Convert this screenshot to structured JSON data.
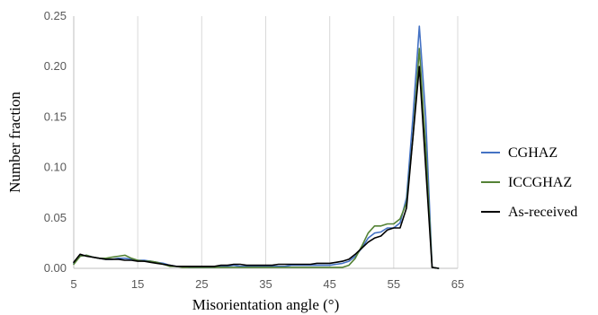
{
  "chart_data": {
    "type": "line",
    "title": "",
    "xlabel": "Misorientation angle (°)",
    "ylabel": "Number fraction",
    "xlim": [
      5,
      65
    ],
    "ylim": [
      0,
      0.25
    ],
    "x_ticks": [
      "5",
      "15",
      "25",
      "35",
      "45",
      "55",
      "65"
    ],
    "y_ticks": [
      "0.00",
      "0.05",
      "0.10",
      "0.15",
      "0.20",
      "0.25"
    ],
    "grid": "vertical",
    "legend": "right",
    "series": [
      {
        "name": "CGHAZ",
        "color": "#4472c4",
        "x": [
          5,
          6,
          7,
          8,
          9,
          10,
          11,
          12,
          13,
          14,
          15,
          16,
          17,
          18,
          19,
          20,
          21,
          22,
          23,
          24,
          25,
          26,
          27,
          28,
          29,
          30,
          31,
          32,
          33,
          34,
          35,
          36,
          37,
          38,
          39,
          40,
          41,
          42,
          43,
          44,
          45,
          46,
          47,
          48,
          49,
          50,
          51,
          52,
          53,
          54,
          55,
          56,
          57,
          58,
          59,
          60,
          61,
          62
        ],
        "y": [
          0.005,
          0.012,
          0.013,
          0.011,
          0.01,
          0.009,
          0.009,
          0.01,
          0.01,
          0.009,
          0.008,
          0.008,
          0.007,
          0.006,
          0.005,
          0.003,
          0.002,
          0.002,
          0.001,
          0.001,
          0.001,
          0.001,
          0.001,
          0.002,
          0.002,
          0.003,
          0.002,
          0.002,
          0.002,
          0.002,
          0.002,
          0.002,
          0.002,
          0.002,
          0.003,
          0.003,
          0.003,
          0.003,
          0.003,
          0.003,
          0.003,
          0.004,
          0.005,
          0.007,
          0.012,
          0.02,
          0.03,
          0.035,
          0.036,
          0.04,
          0.04,
          0.045,
          0.07,
          0.15,
          0.24,
          0.15,
          0.001,
          0.0
        ]
      },
      {
        "name": "ICCGHAZ",
        "color": "#548235",
        "x": [
          5,
          6,
          7,
          8,
          9,
          10,
          11,
          12,
          13,
          14,
          15,
          16,
          17,
          18,
          19,
          20,
          21,
          22,
          23,
          24,
          25,
          26,
          27,
          28,
          29,
          30,
          31,
          32,
          33,
          34,
          35,
          36,
          37,
          38,
          39,
          40,
          41,
          42,
          43,
          44,
          45,
          46,
          47,
          48,
          49,
          50,
          51,
          52,
          53,
          54,
          55,
          56,
          57,
          58,
          59,
          60,
          61,
          62
        ],
        "y": [
          0.004,
          0.012,
          0.013,
          0.011,
          0.01,
          0.01,
          0.011,
          0.012,
          0.013,
          0.01,
          0.008,
          0.007,
          0.007,
          0.006,
          0.004,
          0.002,
          0.002,
          0.001,
          0.001,
          0.001,
          0.001,
          0.001,
          0.001,
          0.001,
          0.001,
          0.001,
          0.001,
          0.001,
          0.001,
          0.001,
          0.001,
          0.001,
          0.001,
          0.001,
          0.001,
          0.001,
          0.001,
          0.001,
          0.001,
          0.001,
          0.001,
          0.001,
          0.001,
          0.003,
          0.01,
          0.022,
          0.035,
          0.042,
          0.042,
          0.044,
          0.044,
          0.049,
          0.065,
          0.13,
          0.218,
          0.12,
          0.001,
          0.0
        ]
      },
      {
        "name": "As-received",
        "color": "#000000",
        "x": [
          5,
          6,
          7,
          8,
          9,
          10,
          11,
          12,
          13,
          14,
          15,
          16,
          17,
          18,
          19,
          20,
          21,
          22,
          23,
          24,
          25,
          26,
          27,
          28,
          29,
          30,
          31,
          32,
          33,
          34,
          35,
          36,
          37,
          38,
          39,
          40,
          41,
          42,
          43,
          44,
          45,
          46,
          47,
          48,
          49,
          50,
          51,
          52,
          53,
          54,
          55,
          56,
          57,
          58,
          59,
          60,
          61,
          62
        ],
        "y": [
          0.006,
          0.014,
          0.012,
          0.011,
          0.01,
          0.009,
          0.009,
          0.009,
          0.008,
          0.008,
          0.007,
          0.007,
          0.006,
          0.005,
          0.004,
          0.003,
          0.002,
          0.002,
          0.002,
          0.002,
          0.002,
          0.002,
          0.002,
          0.003,
          0.003,
          0.004,
          0.004,
          0.003,
          0.003,
          0.003,
          0.003,
          0.003,
          0.004,
          0.004,
          0.004,
          0.004,
          0.004,
          0.004,
          0.005,
          0.005,
          0.005,
          0.006,
          0.007,
          0.009,
          0.014,
          0.02,
          0.026,
          0.03,
          0.032,
          0.038,
          0.04,
          0.04,
          0.06,
          0.13,
          0.2,
          0.1,
          0.001,
          0.0
        ]
      }
    ]
  }
}
